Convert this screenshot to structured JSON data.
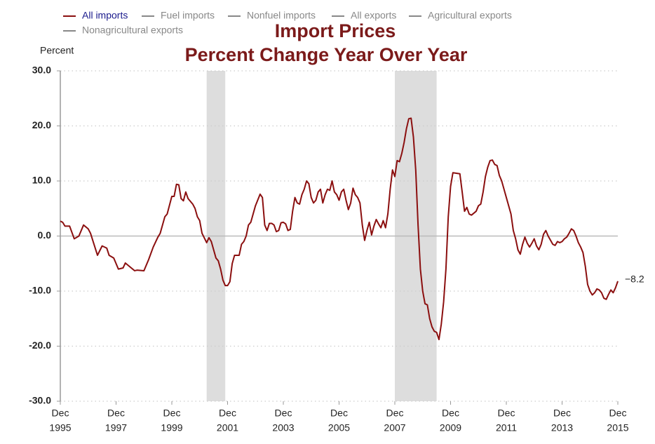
{
  "chart_data": {
    "type": "line",
    "title": [
      "Import Prices",
      "Percent Change Year Over Year"
    ],
    "y_label": "Percent",
    "x": [
      "1995-12",
      "1996-01",
      "1996-02",
      "1996-04",
      "1996-06",
      "1996-08",
      "1996-10",
      "1996-12",
      "1997-01",
      "1997-04",
      "1997-06",
      "1997-08",
      "1997-09",
      "1997-11",
      "1998-01",
      "1998-03",
      "1998-04",
      "1998-06",
      "1998-08",
      "1998-09",
      "1998-12",
      "1999-02",
      "1999-04",
      "1999-06",
      "1999-07",
      "1999-09",
      "1999-10",
      "1999-12",
      "2000-01",
      "2000-02",
      "2000-03",
      "2000-04",
      "2000-05",
      "2000-06",
      "2000-07",
      "2000-09",
      "2000-10",
      "2000-11",
      "2000-12",
      "2001-01",
      "2001-03",
      "2001-04",
      "2001-05",
      "2001-06",
      "2001-07",
      "2001-08",
      "2001-09",
      "2001-10",
      "2001-11",
      "2001-12",
      "2002-01",
      "2002-02",
      "2002-03",
      "2002-05",
      "2002-06",
      "2002-07",
      "2002-08",
      "2002-09",
      "2002-10",
      "2002-12",
      "2003-02",
      "2003-03",
      "2003-04",
      "2003-05",
      "2003-06",
      "2003-07",
      "2003-08",
      "2003-09",
      "2003-10",
      "2003-11",
      "2003-12",
      "2004-01",
      "2004-02",
      "2004-03",
      "2004-04",
      "2004-05",
      "2004-06",
      "2004-07",
      "2004-08",
      "2004-09",
      "2004-10",
      "2004-11",
      "2004-12",
      "2005-01",
      "2005-02",
      "2005-03",
      "2005-04",
      "2005-05",
      "2005-06",
      "2005-07",
      "2005-08",
      "2005-09",
      "2005-10",
      "2005-11",
      "2005-12",
      "2006-01",
      "2006-02",
      "2006-03",
      "2006-04",
      "2006-05",
      "2006-06",
      "2006-07",
      "2006-08",
      "2006-09",
      "2006-10",
      "2006-11",
      "2006-12",
      "2007-01",
      "2007-02",
      "2007-03",
      "2007-04",
      "2007-05",
      "2007-06",
      "2007-07",
      "2007-08",
      "2007-09",
      "2007-10",
      "2007-11",
      "2007-12",
      "2008-01",
      "2008-02",
      "2008-03",
      "2008-04",
      "2008-05",
      "2008-06",
      "2008-07",
      "2008-08",
      "2008-09",
      "2008-10",
      "2008-11",
      "2008-12",
      "2009-01",
      "2009-02",
      "2009-03",
      "2009-04",
      "2009-05",
      "2009-06",
      "2009-07",
      "2009-08",
      "2009-09",
      "2009-10",
      "2009-11",
      "2009-12",
      "2010-01",
      "2010-04",
      "2010-05",
      "2010-06",
      "2010-07",
      "2010-08",
      "2010-09",
      "2010-11",
      "2010-12",
      "2011-01",
      "2011-02",
      "2011-03",
      "2011-04",
      "2011-05",
      "2011-06",
      "2011-07",
      "2011-08",
      "2011-09",
      "2011-10",
      "2011-12",
      "2012-02",
      "2012-03",
      "2012-04",
      "2012-05",
      "2012-06",
      "2012-07",
      "2012-08",
      "2012-09",
      "2012-10",
      "2012-11",
      "2012-12",
      "2013-01",
      "2013-02",
      "2013-03",
      "2013-04",
      "2013-05",
      "2013-06",
      "2013-08",
      "2013-09",
      "2013-10",
      "2013-11",
      "2013-12",
      "2014-01",
      "2014-02",
      "2014-03",
      "2014-04",
      "2014-05",
      "2014-06",
      "2014-07",
      "2014-08",
      "2014-09",
      "2014-10",
      "2014-11",
      "2014-12",
      "2015-01",
      "2015-02",
      "2015-03",
      "2015-04",
      "2015-05",
      "2015-06",
      "2015-07",
      "2015-08",
      "2015-09",
      "2015-10",
      "2015-11",
      "2015-12"
    ],
    "series": [
      {
        "name": "All imports",
        "color": "#8b0f0f",
        "end_label": "−8.2",
        "values": [
          2.7,
          2.5,
          1.8,
          1.8,
          -0.5,
          0.0,
          2.0,
          1.3,
          0.5,
          -3.5,
          -1.8,
          -2.2,
          -3.5,
          -4.0,
          -6.0,
          -5.8,
          -4.9,
          -5.6,
          -6.3,
          -6.2,
          -6.3,
          -4.3,
          -2.0,
          -0.2,
          0.5,
          3.5,
          4.0,
          7.2,
          7.2,
          9.4,
          9.3,
          6.8,
          6.4,
          8.0,
          6.8,
          5.8,
          5.0,
          3.5,
          2.8,
          0.5,
          -1.2,
          -0.3,
          -1.0,
          -2.5,
          -4.0,
          -4.5,
          -6.0,
          -8.0,
          -9.0,
          -9.0,
          -8.3,
          -5.0,
          -3.5,
          -3.5,
          -1.5,
          -1.0,
          0.0,
          2.0,
          2.5,
          5.5,
          7.6,
          7.0,
          2.0,
          1.0,
          2.3,
          2.3,
          2.0,
          0.8,
          1.0,
          2.4,
          2.5,
          2.2,
          1.0,
          1.2,
          4.5,
          7.0,
          6.0,
          5.8,
          7.5,
          8.5,
          10.0,
          9.5,
          7.0,
          6.0,
          6.5,
          8.0,
          8.5,
          6.0,
          7.5,
          8.5,
          8.3,
          10.0,
          8.0,
          7.5,
          6.5,
          8.0,
          8.5,
          6.5,
          4.8,
          6.0,
          8.7,
          7.5,
          7.0,
          6.0,
          2.0,
          -0.8,
          1.0,
          2.5,
          0.2,
          1.8,
          3.0,
          2.2,
          1.5,
          2.8,
          1.5,
          4.0,
          8.5,
          12.0,
          10.8,
          13.7,
          13.5,
          15.0,
          17.0,
          19.5,
          21.3,
          21.4,
          18.0,
          12.0,
          2.0,
          -6.0,
          -10.0,
          -12.3,
          -12.5,
          -15.0,
          -16.5,
          -17.3,
          -17.5,
          -18.8,
          -16.0,
          -12.0,
          -6.0,
          3.5,
          9.0,
          11.5,
          11.3,
          8.0,
          4.5,
          5.2,
          4.0,
          3.8,
          4.5,
          5.5,
          5.8,
          8.0,
          10.8,
          12.5,
          13.7,
          13.8,
          13.0,
          12.8,
          11.0,
          10.0,
          7.0,
          4.0,
          1.0,
          -0.5,
          -2.5,
          -3.3,
          -1.5,
          -0.2,
          -1.3,
          -2.0,
          -1.3,
          -0.5,
          -1.8,
          -2.5,
          -1.5,
          0.3,
          1.0,
          0.0,
          -1.5,
          -1.7,
          -1.0,
          -1.2,
          -1.0,
          -0.5,
          -0.2,
          0.5,
          1.3,
          1.0,
          0.0,
          -1.2,
          -2.0,
          -3.0,
          -5.5,
          -8.8,
          -10.0,
          -10.7,
          -10.3,
          -9.6,
          -9.8,
          -10.3,
          -11.3,
          -11.5,
          -10.6,
          -9.8,
          -10.3,
          -9.4,
          -8.2
        ]
      }
    ],
    "hidden_series": [
      {
        "name": "Fuel imports",
        "color": "#888888"
      },
      {
        "name": "Nonfuel imports",
        "color": "#888888"
      },
      {
        "name": "All exports",
        "color": "#888888"
      },
      {
        "name": "Agricultural exports",
        "color": "#888888"
      },
      {
        "name": "Nonagricultural exports",
        "color": "#888888"
      }
    ],
    "recessions": [
      {
        "start": "2001-03",
        "end": "2001-11"
      },
      {
        "start": "2007-12",
        "end": "2009-06"
      }
    ],
    "recession_color": "#dddddd",
    "xlim": [
      "1995-12",
      "2015-12"
    ],
    "xticks": [
      {
        "value": "1995-12",
        "label": [
          "Dec",
          "1995"
        ]
      },
      {
        "value": "1997-12",
        "label": [
          "Dec",
          "1997"
        ]
      },
      {
        "value": "1999-12",
        "label": [
          "Dec",
          "1999"
        ]
      },
      {
        "value": "2001-12",
        "label": [
          "Dec",
          "2001"
        ]
      },
      {
        "value": "2003-12",
        "label": [
          "Dec",
          "2003"
        ]
      },
      {
        "value": "2005-12",
        "label": [
          "Dec",
          "2005"
        ]
      },
      {
        "value": "2007-12",
        "label": [
          "Dec",
          "2007"
        ]
      },
      {
        "value": "2009-12",
        "label": [
          "Dec",
          "2009"
        ]
      },
      {
        "value": "2011-12",
        "label": [
          "Dec",
          "2011"
        ]
      },
      {
        "value": "2013-12",
        "label": [
          "Dec",
          "2013"
        ]
      },
      {
        "value": "2015-12",
        "label": [
          "Dec",
          "2015"
        ]
      }
    ],
    "ylim": [
      -30,
      30
    ],
    "yticks": [
      {
        "value": -30,
        "label": "-30.0"
      },
      {
        "value": -20,
        "label": "-20.0"
      },
      {
        "value": -10,
        "label": "-10.0"
      },
      {
        "value": 0,
        "label": "0.0"
      },
      {
        "value": 10,
        "label": "10.0"
      },
      {
        "value": 20,
        "label": "20.0"
      },
      {
        "value": 30,
        "label": "30.0"
      }
    ],
    "grid": true
  }
}
